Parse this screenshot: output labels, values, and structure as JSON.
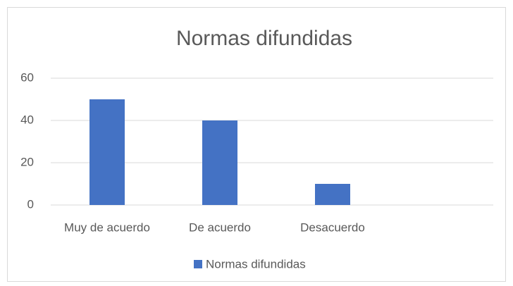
{
  "chart_data": {
    "type": "bar",
    "title": "Normas difundidas",
    "categories": [
      "Muy de acuerdo",
      "De acuerdo",
      "Desacuerdo",
      null
    ],
    "series": [
      {
        "name": "Normas difundidas",
        "color": "#4472c4",
        "values": [
          50,
          40,
          10,
          null
        ]
      }
    ],
    "ylim": [
      0,
      60
    ],
    "yticks": [
      0,
      20,
      40,
      60
    ],
    "grid": true,
    "legend": "bottom"
  }
}
